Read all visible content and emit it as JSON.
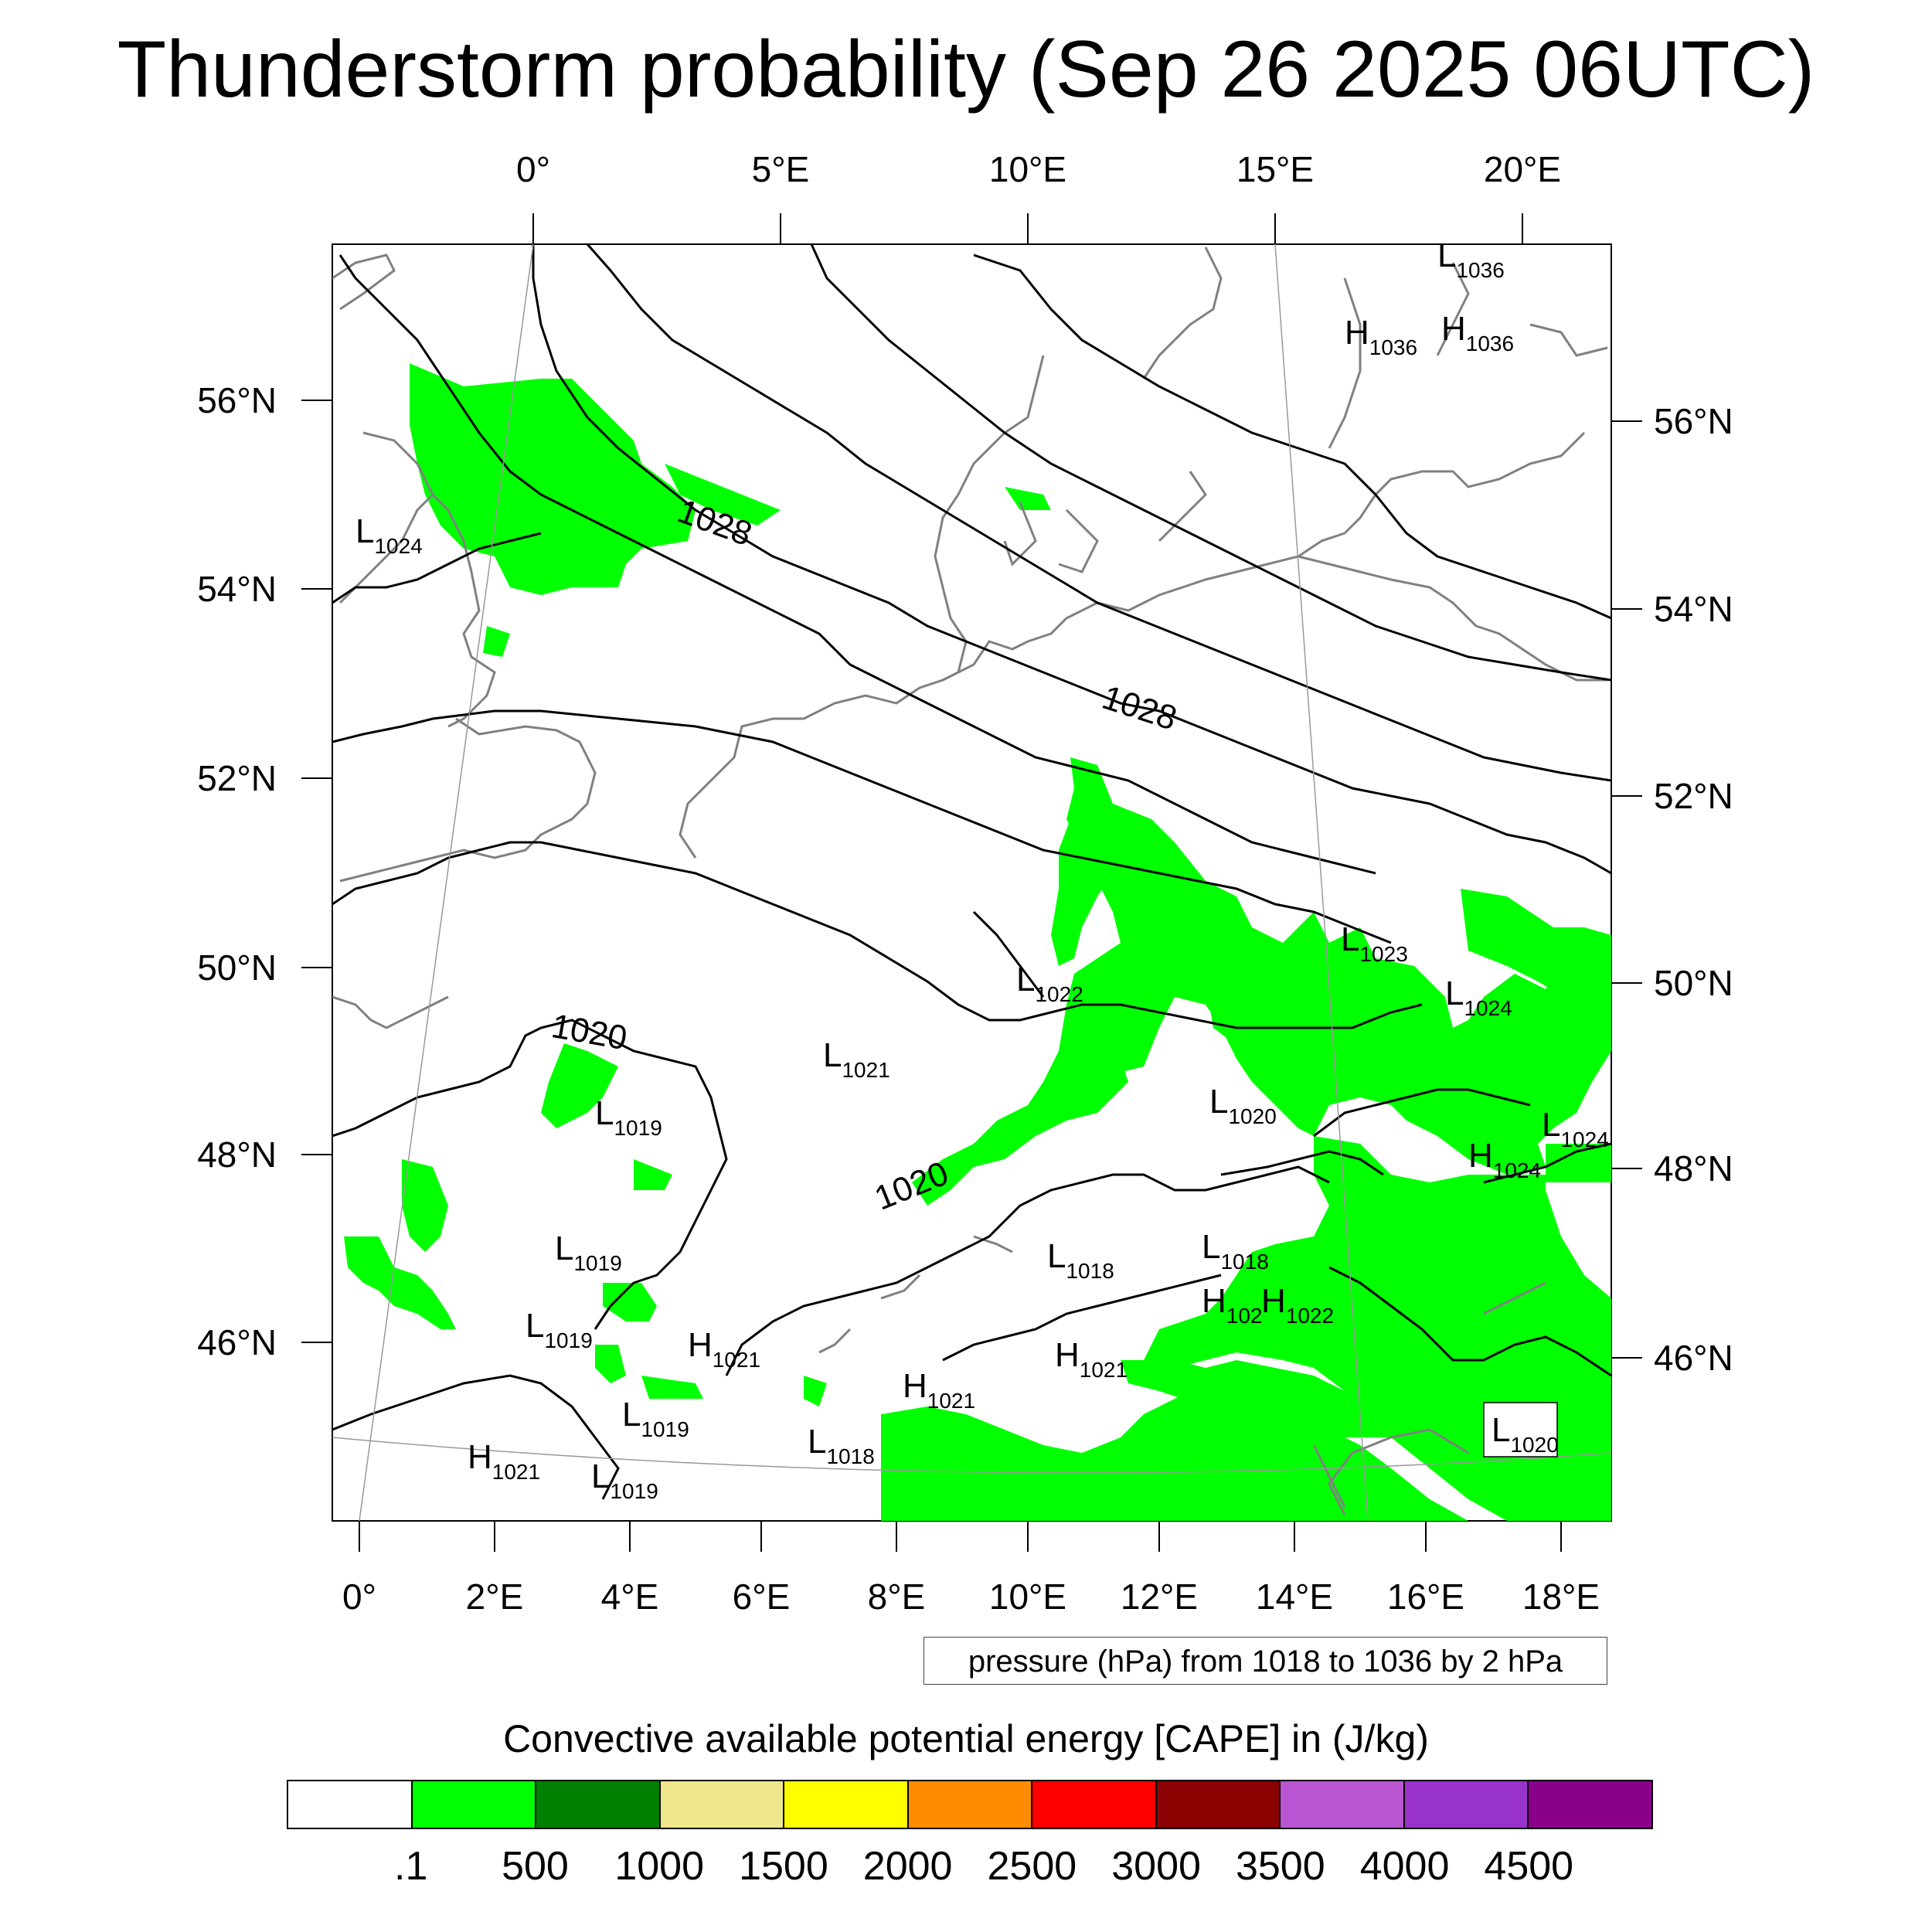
{
  "title": "Thunderstorm probability (Sep 26 2025 06UTC)",
  "top_lon_labels": [
    "0°",
    "5°E",
    "10°E",
    "15°E",
    "20°E"
  ],
  "bottom_lon_labels": [
    "0°",
    "2°E",
    "4°E",
    "6°E",
    "8°E",
    "10°E",
    "12°E",
    "14°E",
    "16°E",
    "18°E"
  ],
  "left_lat_labels": [
    "56°N",
    "54°N",
    "52°N",
    "50°N",
    "48°N",
    "46°N"
  ],
  "right_lat_labels": [
    "56°N",
    "54°N",
    "52°N",
    "50°N",
    "48°N",
    "46°N"
  ],
  "contour_labels": [
    "1028",
    "1028",
    "1020",
    "1020"
  ],
  "pressure_centers": [
    {
      "type": "L",
      "value": "1036"
    },
    {
      "type": "H",
      "value": "1036"
    },
    {
      "type": "H",
      "value": "1036"
    },
    {
      "type": "L",
      "value": "1024"
    },
    {
      "type": "L",
      "value": "1023"
    },
    {
      "type": "L",
      "value": "1024"
    },
    {
      "type": "L",
      "value": "1022"
    },
    {
      "type": "L",
      "value": "1021"
    },
    {
      "type": "L",
      "value": "1019"
    },
    {
      "type": "L",
      "value": "1020"
    },
    {
      "type": "L",
      "value": "1024"
    },
    {
      "type": "H",
      "value": "1024"
    },
    {
      "type": "L",
      "value": "1019"
    },
    {
      "type": "L",
      "value": "1018"
    },
    {
      "type": "L",
      "value": "1018"
    },
    {
      "type": "H",
      "value": "102"
    },
    {
      "type": "H",
      "value": "1022"
    },
    {
      "type": "L",
      "value": "1019"
    },
    {
      "type": "H",
      "value": "1021"
    },
    {
      "type": "H",
      "value": "1021"
    },
    {
      "type": "H",
      "value": "1021"
    },
    {
      "type": "L",
      "value": "1019"
    },
    {
      "type": "L",
      "value": "1018"
    },
    {
      "type": "L",
      "value": "1020"
    },
    {
      "type": "H",
      "value": "1021"
    },
    {
      "type": "L",
      "value": "1019"
    }
  ],
  "pressure_note": "pressure (hPa) from 1018 to 1036 by 2 hPa",
  "colorbar": {
    "title": "Convective available potential energy [CAPE] in (J/kg)",
    "colors": [
      "#ffffff",
      "#00ff00",
      "#008000",
      "#f0e68c",
      "#ffff00",
      "#ff8c00",
      "#ff0000",
      "#8b0000",
      "#ba55d3",
      "#9932cc",
      "#8b008b"
    ],
    "tick_labels": [
      ".1",
      "500",
      "1000",
      "1500",
      "2000",
      "2500",
      "3000",
      "3500",
      "4000",
      "4500"
    ]
  }
}
